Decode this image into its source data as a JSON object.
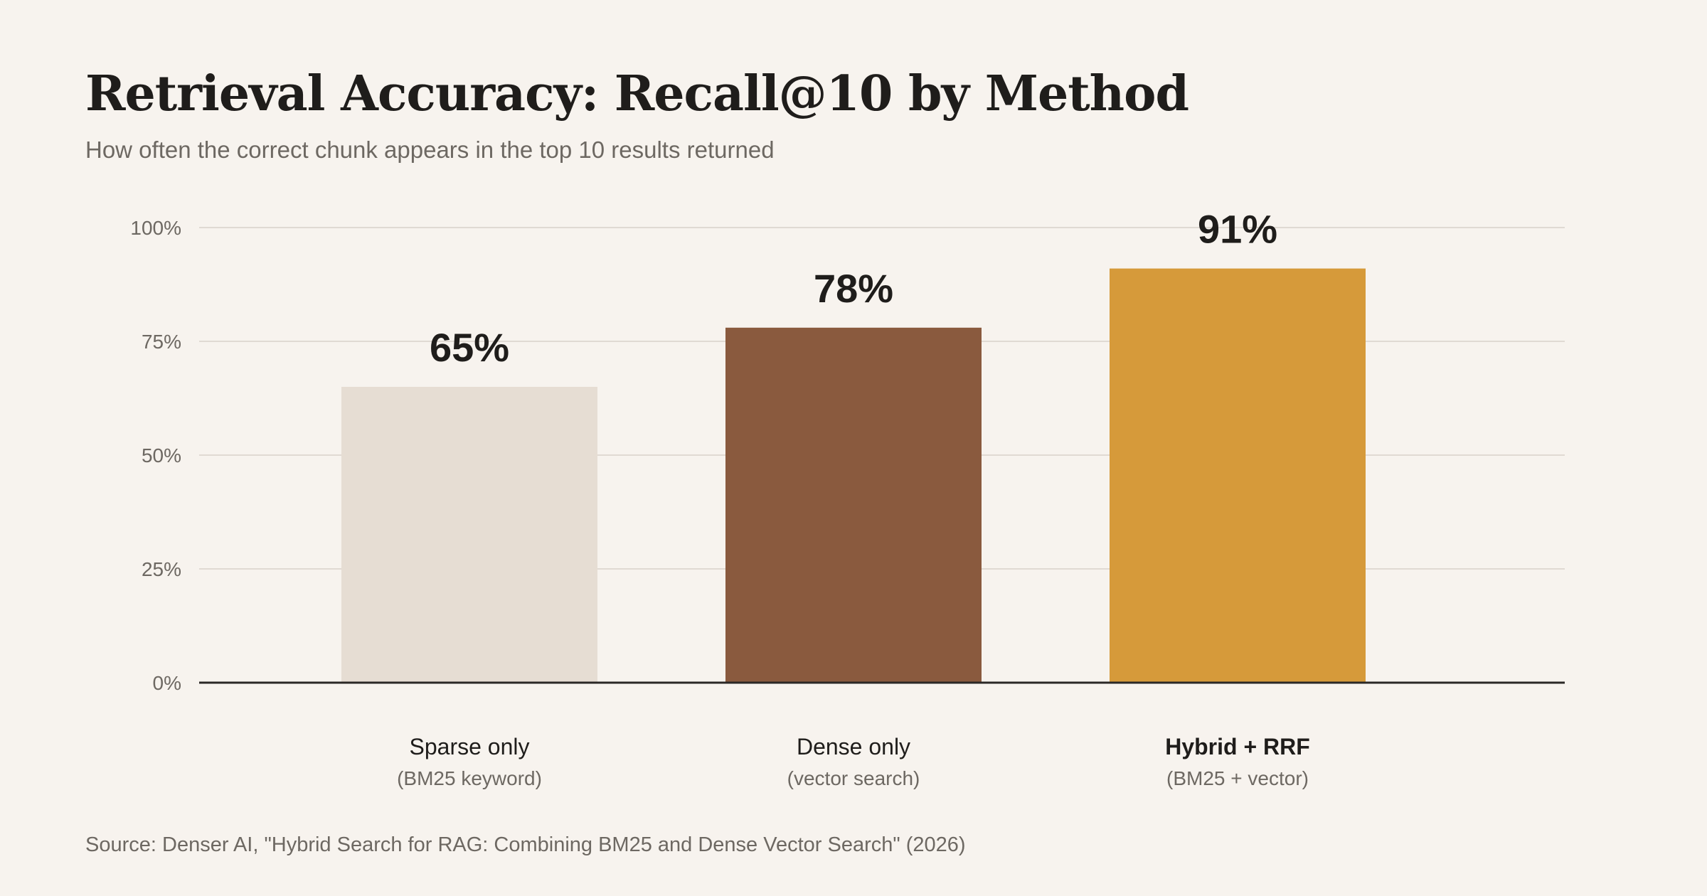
{
  "chart_data": {
    "type": "bar",
    "title": "Retrieval Accuracy: Recall@10 by Method",
    "subtitle": "How often the correct chunk appears in the top 10 results returned",
    "categories": [
      {
        "label": "Sparse only",
        "sublabel": "(BM25 keyword)",
        "emphasis": false
      },
      {
        "label": "Dense only",
        "sublabel": "(vector search)",
        "emphasis": false
      },
      {
        "label": "Hybrid + RRF",
        "sublabel": "(BM25 + vector)",
        "emphasis": true
      }
    ],
    "values": [
      65,
      78,
      91
    ],
    "value_labels": [
      "65%",
      "78%",
      "91%"
    ],
    "colors": [
      "#e6ddd3",
      "#8a5a3e",
      "#d69a3a"
    ],
    "ylim": [
      0,
      100
    ],
    "yticks": [
      0,
      25,
      50,
      75,
      100
    ],
    "ytick_labels": [
      "0%",
      "25%",
      "50%",
      "75%",
      "100%"
    ],
    "grid": true,
    "xlabel": "",
    "ylabel": ""
  },
  "source": "Source: Denser AI, \"Hybrid Search for RAG: Combining BM25 and Dense Vector Search\" (2026)"
}
